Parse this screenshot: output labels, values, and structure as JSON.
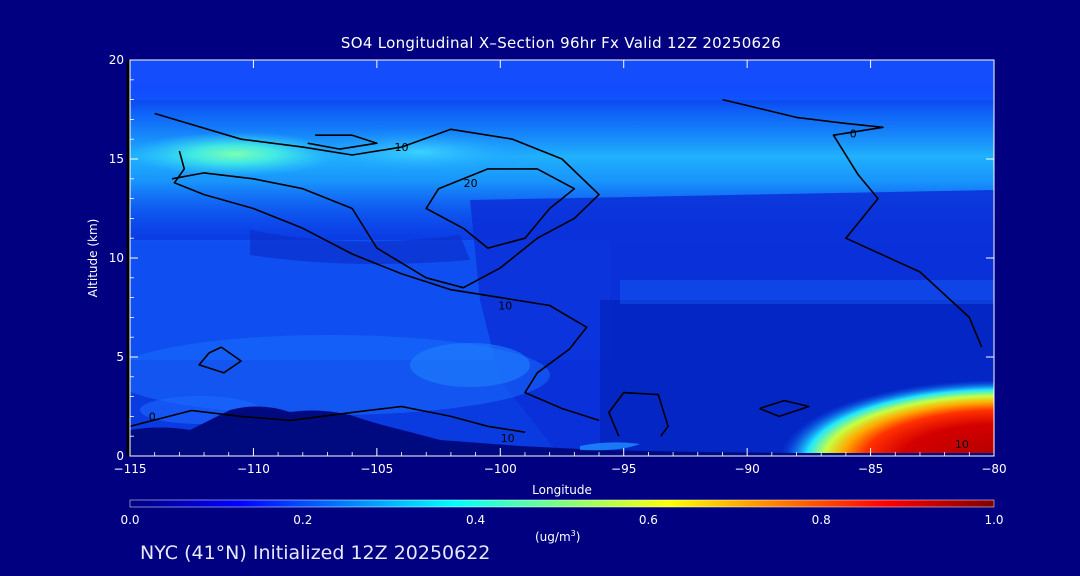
{
  "chart_data": {
    "type": "heatmap",
    "title": "SO4 Longitudinal X–Section 96hr  Fx Valid 12Z 20250626",
    "xlabel": "Longitude",
    "ylabel": "Altitude (km)",
    "xlim": [
      -115,
      -80
    ],
    "ylim": [
      0,
      20
    ],
    "x_ticks": [
      -115,
      -110,
      -105,
      -100,
      -95,
      -90,
      -85,
      -80
    ],
    "y_ticks": [
      0,
      5,
      10,
      15,
      20
    ],
    "colorbar": {
      "min": 0.0,
      "max": 1.0,
      "ticks": [
        "0.0",
        "0.2",
        "0.4",
        "0.6",
        "0.8",
        "1.0"
      ],
      "unit_text": "(ug/m",
      "unit_sup": "3",
      "unit_close": ")",
      "colors": [
        "#00007f",
        "#0000ff",
        "#007fff",
        "#00ffff",
        "#7fff7f",
        "#ffff00",
        "#ff7f00",
        "#ff0000",
        "#7f0000"
      ]
    },
    "field_features": [
      {
        "feature": "upper layer",
        "lon": [
          -115,
          -80
        ],
        "alt": [
          14,
          17
        ],
        "value": 0.25
      },
      {
        "feature": "layer core",
        "lon": -111,
        "alt": 15.2,
        "value": 0.5
      },
      {
        "feature": "surface plume",
        "lon": [
          -85,
          -80
        ],
        "alt": [
          0,
          1.5
        ],
        "value": 1.0
      }
    ],
    "contour_labels": [
      {
        "text": "10",
        "lon": -104.0,
        "alt": 15.6
      },
      {
        "text": "20",
        "lon": -101.2,
        "alt": 13.8
      },
      {
        "text": "10",
        "lon": -99.8,
        "alt": 7.6
      },
      {
        "text": "0",
        "lon": -85.7,
        "alt": 16.3
      },
      {
        "text": "0",
        "lon": -114.1,
        "alt": 2.0
      },
      {
        "text": "10",
        "lon": -99.7,
        "alt": 0.9
      },
      {
        "text": "10",
        "lon": -81.3,
        "alt": 0.6
      }
    ],
    "contours": [
      {
        "level": 0,
        "points": [
          [
            -91,
            18
          ],
          [
            -88,
            17.1
          ],
          [
            -86,
            16.8
          ],
          [
            -84.5,
            16.6
          ],
          [
            -86.5,
            16.2
          ],
          [
            -85.5,
            14.2
          ],
          [
            -84.7,
            13
          ],
          [
            -86,
            11
          ],
          [
            -83,
            9.3
          ],
          [
            -81,
            7
          ],
          [
            -80.5,
            5.5
          ]
        ]
      },
      {
        "level": 0,
        "points": [
          [
            -113,
            15.4
          ],
          [
            -112.8,
            14.5
          ],
          [
            -113.2,
            13.8
          ],
          [
            -112,
            13.2
          ],
          [
            -110,
            12.5
          ],
          [
            -108,
            11.5
          ],
          [
            -106,
            10.2
          ],
          [
            -104,
            9.2
          ],
          [
            -102,
            8.4
          ],
          [
            -100,
            8.0
          ],
          [
            -98,
            7.6
          ],
          [
            -96.5,
            6.5
          ],
          [
            -97.2,
            5.4
          ],
          [
            -98.5,
            4.2
          ],
          [
            -99,
            3.2
          ],
          [
            -97.5,
            2.4
          ],
          [
            -96,
            1.8
          ]
        ]
      },
      {
        "level": 0,
        "points": [
          [
            -95.2,
            1.0
          ],
          [
            -95.6,
            2.2
          ],
          [
            -95.0,
            3.2
          ],
          [
            -93.6,
            3.1
          ],
          [
            -93.2,
            1.5
          ],
          [
            -93.5,
            1.0
          ]
        ]
      },
      {
        "level": 0,
        "points": [
          [
            -89.5,
            2.4
          ],
          [
            -88.5,
            2.8
          ],
          [
            -87.5,
            2.5
          ],
          [
            -88.7,
            2.0
          ],
          [
            -89.5,
            2.4
          ]
        ]
      },
      {
        "level": 10,
        "points": [
          [
            -114,
            17.3
          ],
          [
            -110.5,
            16.0
          ],
          [
            -108,
            15.6
          ],
          [
            -106,
            15.2
          ],
          [
            -104,
            15.6
          ],
          [
            -102,
            16.5
          ],
          [
            -99.5,
            16.0
          ],
          [
            -97.5,
            15.0
          ],
          [
            -96,
            13.2
          ],
          [
            -97,
            12.0
          ],
          [
            -98.5,
            11.0
          ],
          [
            -100,
            9.5
          ],
          [
            -101.5,
            8.5
          ],
          [
            -103,
            9.0
          ],
          [
            -105,
            10.5
          ],
          [
            -106,
            12.5
          ],
          [
            -108,
            13.5
          ],
          [
            -110,
            14.0
          ],
          [
            -112,
            14.3
          ],
          [
            -113.3,
            14.0
          ]
        ]
      },
      {
        "level": 10,
        "points": [
          [
            -107.5,
            16.2
          ],
          [
            -106,
            16.2
          ],
          [
            -105,
            15.8
          ],
          [
            -106.5,
            15.5
          ],
          [
            -107.8,
            15.8
          ]
        ]
      },
      {
        "level": 10,
        "points": [
          [
            -111.3,
            5.5
          ],
          [
            -110.5,
            4.8
          ],
          [
            -111.2,
            4.2
          ],
          [
            -112.2,
            4.6
          ],
          [
            -111.8,
            5.2
          ],
          [
            -111.3,
            5.5
          ]
        ]
      },
      {
        "level": 20,
        "points": [
          [
            -102.5,
            13.5
          ],
          [
            -100.5,
            14.5
          ],
          [
            -98.5,
            14.5
          ],
          [
            -97,
            13.5
          ],
          [
            -98,
            12.5
          ],
          [
            -99,
            11.0
          ],
          [
            -100.5,
            10.5
          ],
          [
            -101.5,
            11.5
          ],
          [
            -103,
            12.5
          ],
          [
            -102.5,
            13.5
          ]
        ]
      },
      {
        "level": 0,
        "points": [
          [
            -115,
            1.5
          ],
          [
            -112.5,
            2.3
          ],
          [
            -110.5,
            2.0
          ],
          [
            -108.5,
            1.8
          ],
          [
            -106,
            2.2
          ],
          [
            -104,
            2.5
          ],
          [
            -102,
            2.0
          ],
          [
            -100.5,
            1.5
          ],
          [
            -99,
            1.2
          ]
        ]
      }
    ]
  },
  "footer": {
    "text": "NYC (41°N) Initialized 12Z 20250622"
  }
}
